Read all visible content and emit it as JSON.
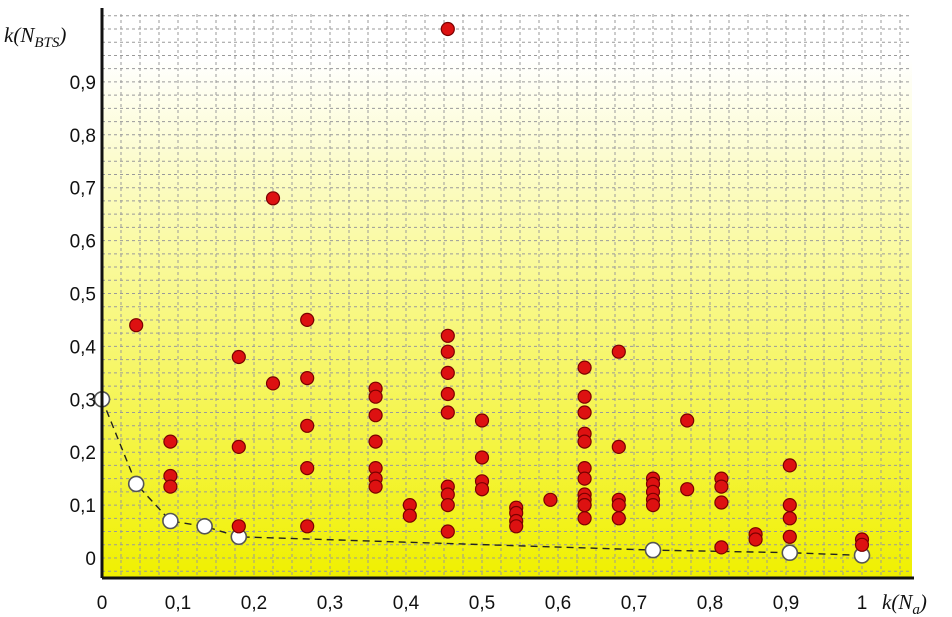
{
  "chart_data": {
    "type": "scatter",
    "title": "",
    "xlabel": {
      "base": "k(N",
      "sub": "a",
      "close": ")"
    },
    "ylabel": {
      "base": "k(N",
      "sub": "BTS",
      "close": ")"
    },
    "xlim": [
      0,
      1.07
    ],
    "ylim": [
      -0.035,
      1.03
    ],
    "grid": true,
    "x_ticks": [
      {
        "value": 0,
        "label": "0"
      },
      {
        "value": 0.1,
        "label": "0,1"
      },
      {
        "value": 0.2,
        "label": "0,2"
      },
      {
        "value": 0.3,
        "label": "0,3"
      },
      {
        "value": 0.4,
        "label": "0,4"
      },
      {
        "value": 0.5,
        "label": "0,5"
      },
      {
        "value": 0.6,
        "label": "0,6"
      },
      {
        "value": 0.7,
        "label": "0,7"
      },
      {
        "value": 0.8,
        "label": "0,8"
      },
      {
        "value": 0.9,
        "label": "0,9"
      },
      {
        "value": 1,
        "label": "1"
      }
    ],
    "y_ticks": [
      {
        "value": 0,
        "label": "0"
      },
      {
        "value": 0.1,
        "label": "0,1"
      },
      {
        "value": 0.2,
        "label": "0,2"
      },
      {
        "value": 0.3,
        "label": "0,3"
      },
      {
        "value": 0.4,
        "label": "0,4"
      },
      {
        "value": 0.5,
        "label": "0,5"
      },
      {
        "value": 0.6,
        "label": "0,6"
      },
      {
        "value": 0.7,
        "label": "0,7"
      },
      {
        "value": 0.8,
        "label": "0,8"
      },
      {
        "value": 0.9,
        "label": "0,9"
      }
    ],
    "colors": {
      "points": "#dd1111",
      "points_stroke": "#7a0000",
      "frontier_fill": "#ffffff",
      "frontier_stroke": "#555555",
      "grid": "#9a9a9a",
      "axis": "#111111",
      "bg_top": "#ffffff",
      "bg_bottom": "#f0f000"
    },
    "series": [
      {
        "kind": "points",
        "x": [
          0.045,
          0.09,
          0.09,
          0.09,
          0.18,
          0.18,
          0.18,
          0.225,
          0.225,
          0.27,
          0.27,
          0.27,
          0.27,
          0.27,
          0.36,
          0.36,
          0.36,
          0.36,
          0.36,
          0.36,
          0.36,
          0.405,
          0.405,
          0.455,
          0.455,
          0.455,
          0.455,
          0.455,
          0.455,
          0.455,
          0.455,
          0.455,
          0.455,
          0.5,
          0.5,
          0.5,
          0.5,
          0.545,
          0.545,
          0.545,
          0.545,
          0.59,
          0.635,
          0.635,
          0.635,
          0.635,
          0.635,
          0.635,
          0.635,
          0.635,
          0.635,
          0.635,
          0.635,
          0.635,
          0.68,
          0.68,
          0.68,
          0.68,
          0.68,
          0.725,
          0.725,
          0.725,
          0.725,
          0.725,
          0.77,
          0.77,
          0.815,
          0.815,
          0.815,
          0.815,
          0.86,
          0.86,
          0.905,
          0.905,
          0.905,
          0.905,
          1.0,
          1.0
        ],
        "y": [
          0.44,
          0.22,
          0.155,
          0.135,
          0.38,
          0.21,
          0.06,
          0.68,
          0.33,
          0.45,
          0.34,
          0.25,
          0.17,
          0.06,
          0.32,
          0.305,
          0.27,
          0.22,
          0.17,
          0.15,
          0.135,
          0.1,
          0.08,
          1.0,
          0.42,
          0.39,
          0.35,
          0.31,
          0.275,
          0.135,
          0.12,
          0.1,
          0.05,
          0.26,
          0.19,
          0.145,
          0.13,
          0.095,
          0.085,
          0.07,
          0.06,
          0.11,
          0.36,
          0.305,
          0.275,
          0.235,
          0.22,
          0.17,
          0.15,
          0.12,
          0.11,
          0.1,
          0.075,
          0.1,
          0.39,
          0.21,
          0.11,
          0.1,
          0.075,
          0.15,
          0.14,
          0.125,
          0.11,
          0.1,
          0.26,
          0.13,
          0.15,
          0.135,
          0.105,
          0.02,
          0.045,
          0.035,
          0.175,
          0.1,
          0.075,
          0.04,
          0.035,
          0.025
        ]
      },
      {
        "kind": "frontier",
        "x": [
          0.0,
          0.045,
          0.09,
          0.135,
          0.18,
          0.725,
          0.905,
          1.0
        ],
        "y": [
          0.3,
          0.14,
          0.07,
          0.06,
          0.04,
          0.015,
          0.01,
          0.005
        ]
      }
    ]
  }
}
